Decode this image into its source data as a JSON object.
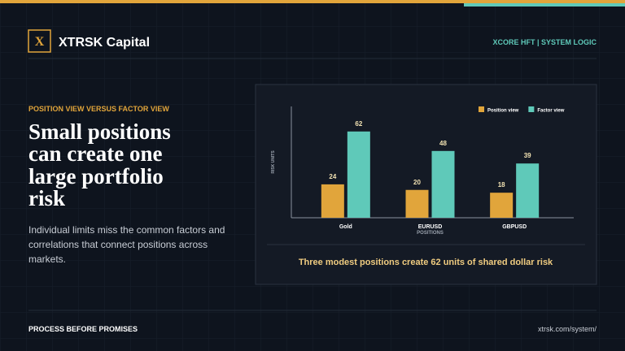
{
  "header": {
    "brand": "XTRSK Capital",
    "logo": "X",
    "tag": "XCORE HFT | SYSTEM LOGIC"
  },
  "kicker": "POSITION VIEW VERSUS FACTOR VIEW",
  "headline": [
    "Small positions",
    "can create one",
    "large portfolio",
    "risk"
  ],
  "body": [
    "Individual limits miss the common factors and",
    "correlations that connect positions across",
    "markets."
  ],
  "footer": {
    "left": "PROCESS BEFORE PROMISES",
    "right": "xtrsk.com/system/"
  },
  "chart_data": {
    "type": "bar",
    "categories": [
      "Gold",
      "EURUSD",
      "GBPUSD"
    ],
    "series": [
      {
        "name": "Position view",
        "color": "#e1a53b",
        "values": [
          24,
          20,
          18
        ]
      },
      {
        "name": "Factor view",
        "color": "#5fc9b9",
        "values": [
          62,
          48,
          39
        ]
      }
    ],
    "ylim": [
      0,
      80
    ],
    "x_label": "POSITIONS",
    "y_label": "RISK UNITS",
    "legend": "top-right",
    "annotation": "Three modest positions create 62 units of shared dollar risk"
  }
}
